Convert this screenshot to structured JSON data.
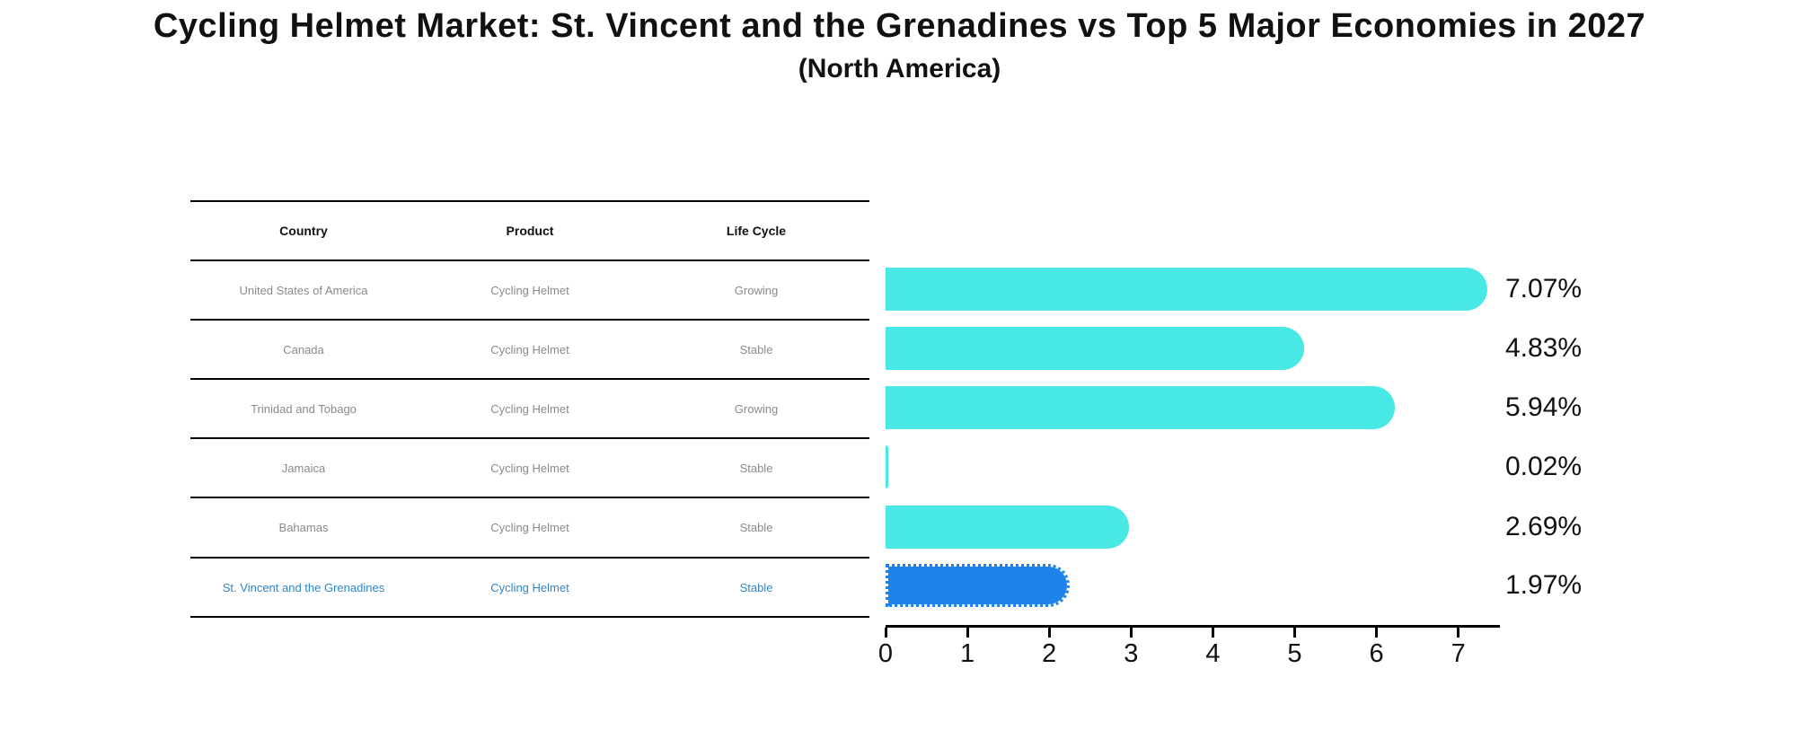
{
  "title": "Cycling Helmet Market: St. Vincent and the Grenadines vs Top 5 Major Economies in 2027",
  "subtitle": "(North America)",
  "table": {
    "headers": {
      "country": "Country",
      "product": "Product",
      "life_cycle": "Life Cycle"
    },
    "rows": [
      {
        "country": "United States of America",
        "product": "Cycling Helmet",
        "life_cycle": "Growing",
        "highlight": false
      },
      {
        "country": "Canada",
        "product": "Cycling Helmet",
        "life_cycle": "Stable",
        "highlight": false
      },
      {
        "country": "Trinidad and Tobago",
        "product": "Cycling Helmet",
        "life_cycle": "Growing",
        "highlight": false
      },
      {
        "country": "Jamaica",
        "product": "Cycling Helmet",
        "life_cycle": "Stable",
        "highlight": false
      },
      {
        "country": "Bahamas",
        "product": "Cycling Helmet",
        "life_cycle": "Stable",
        "highlight": false
      },
      {
        "country": "St. Vincent and the Grenadines",
        "product": "Cycling Helmet",
        "life_cycle": "Stable",
        "highlight": true
      }
    ]
  },
  "chart_data": {
    "type": "bar",
    "orientation": "horizontal",
    "title": "Cycling Helmet Market: St. Vincent and the Grenadines vs Top 5 Major Economies in 2027 (North America)",
    "categories": [
      "United States of America",
      "Canada",
      "Trinidad and Tobago",
      "Jamaica",
      "Bahamas",
      "St. Vincent and the Grenadines"
    ],
    "values": [
      7.07,
      4.83,
      5.94,
      0.02,
      2.69,
      1.97
    ],
    "value_labels": [
      "7.07%",
      "4.83%",
      "5.94%",
      "0.02%",
      "2.69%",
      "1.97%"
    ],
    "x_ticks": [
      0,
      1,
      2,
      3,
      4,
      5,
      6,
      7
    ],
    "xlim": [
      0,
      7.5
    ],
    "grid": false,
    "legend": "none",
    "bar_color": "#48e8e4",
    "highlight_color": "#1e82eb",
    "highlight_index": 5,
    "highlight_border_style": "dotted"
  },
  "colors": {
    "background": "#ffffff",
    "table_line": "#000000",
    "row_text": "#8a8a8a",
    "highlight_text": "#2e86c8",
    "axis": "#000000",
    "label_text": "#111111"
  }
}
